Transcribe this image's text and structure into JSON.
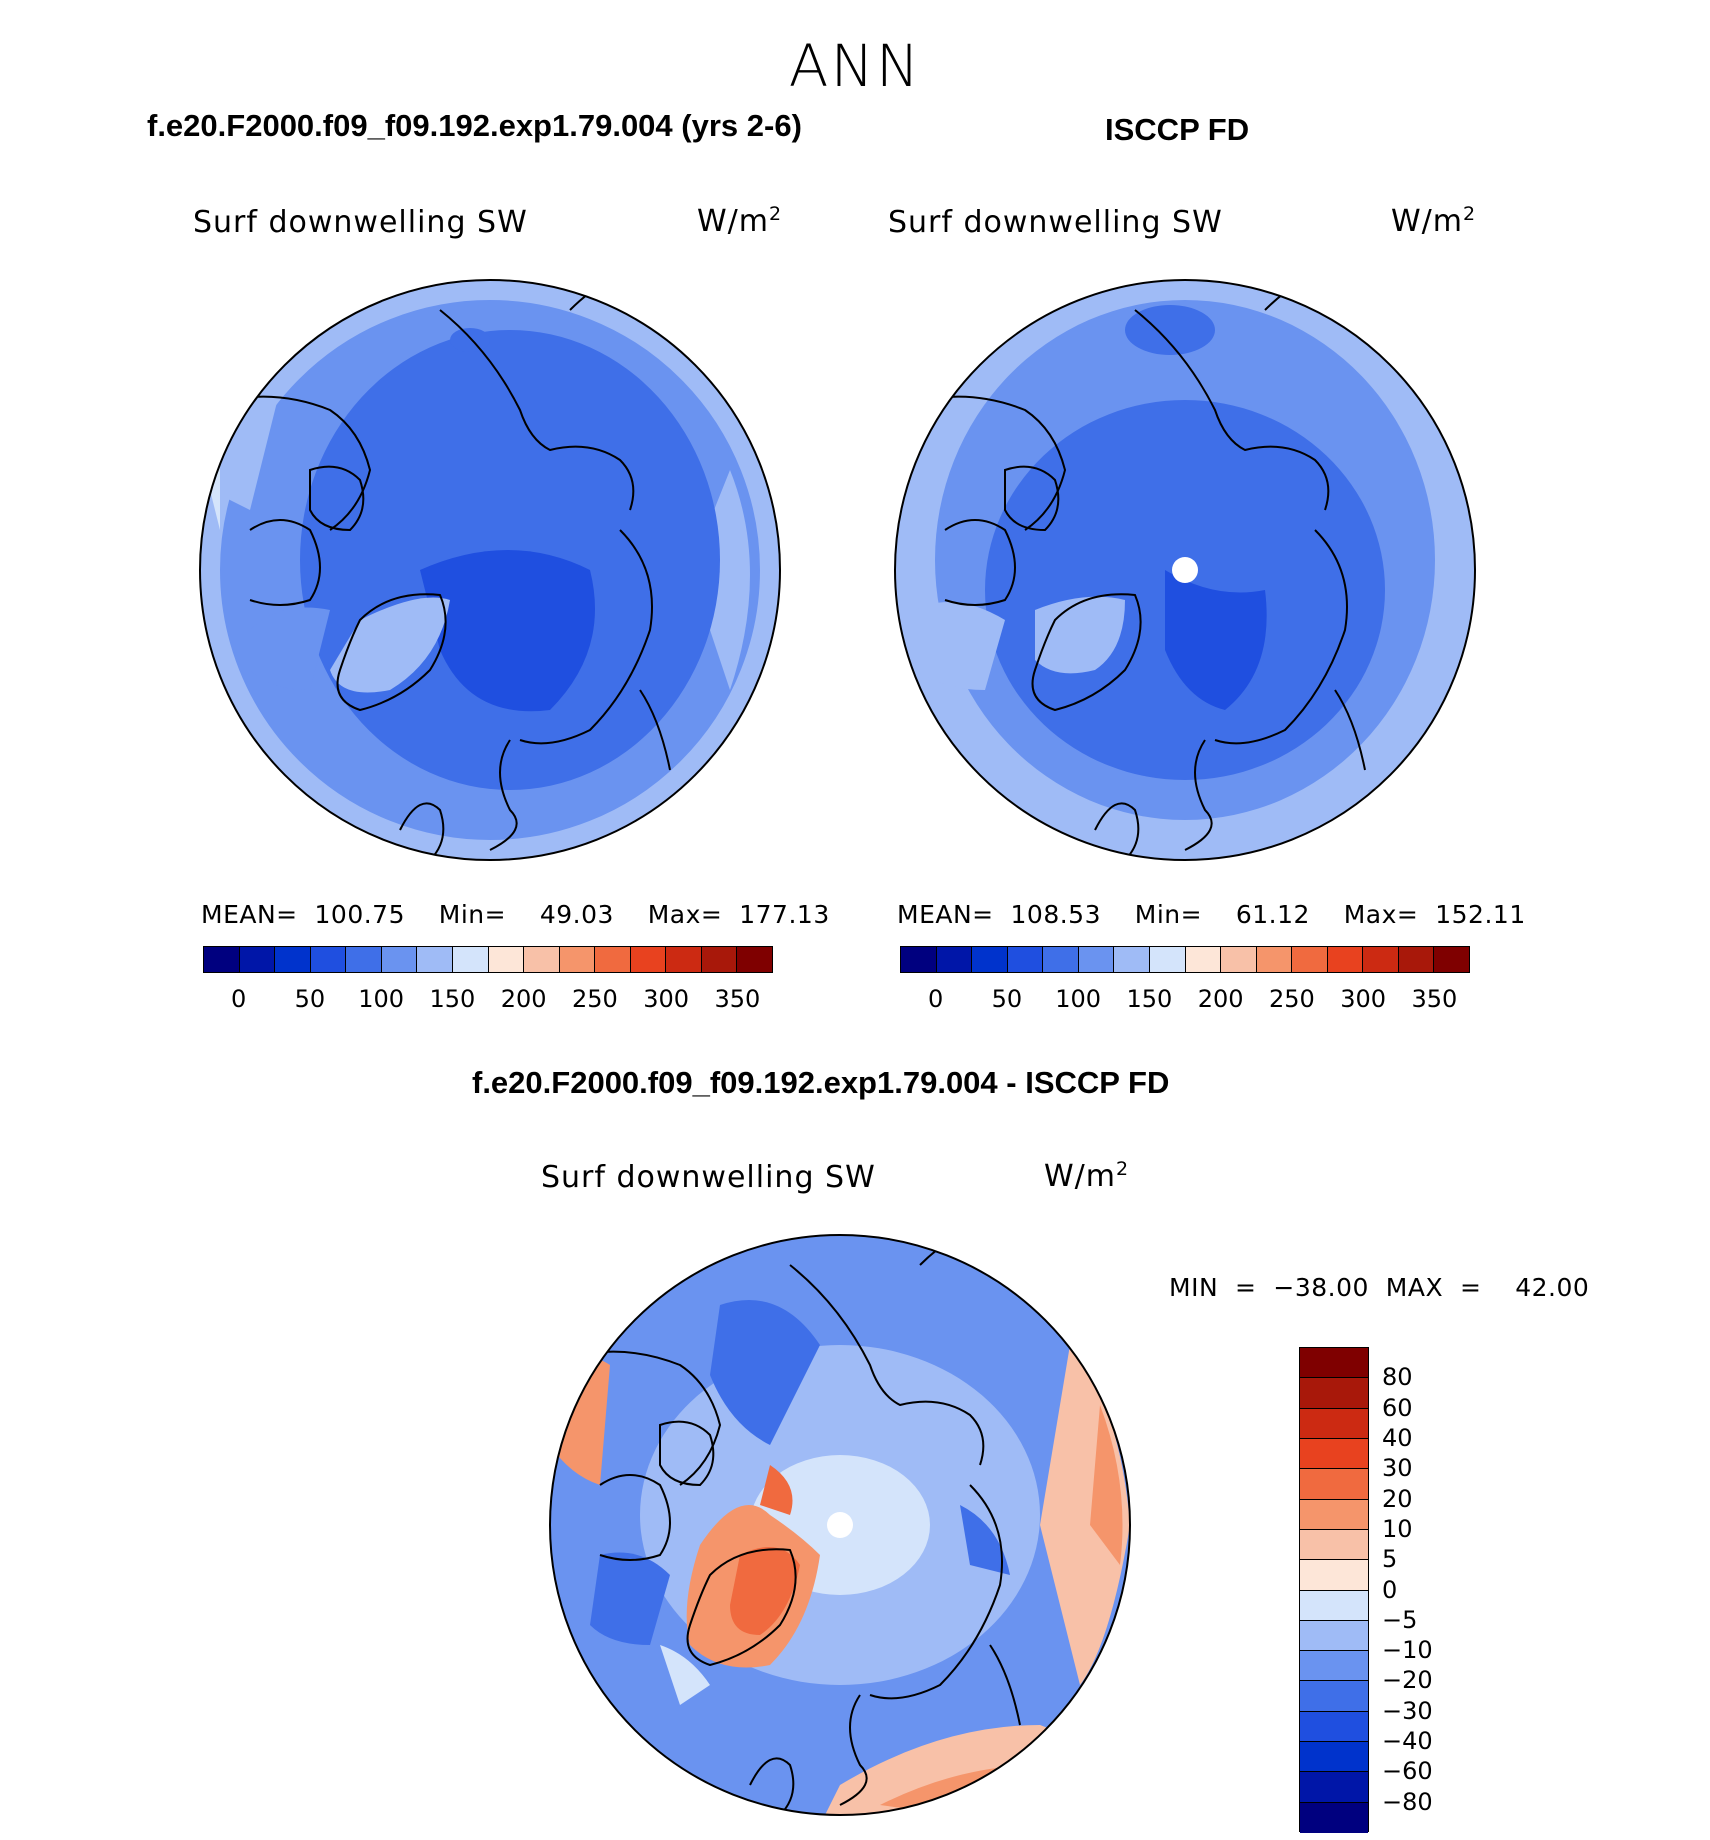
{
  "season": "ANN",
  "top_left": {
    "case_title": "f.e20.F2000.f09_f09.192.exp1.79.004 (yrs 2-6)",
    "panel_title": "Surf downwelling SW",
    "units_base": "W/m",
    "units_exp": "2",
    "stats": "MEAN=  100.75    Min=    49.03    Max=  177.13",
    "mean": 100.75,
    "min": 49.03,
    "max": 177.13
  },
  "top_right": {
    "case_title": "ISCCP FD",
    "panel_title": "Surf downwelling SW",
    "units_base": "W/m",
    "units_exp": "2",
    "stats": "MEAN=  108.53    Min=    61.12    Max=  152.11",
    "mean": 108.53,
    "min": 61.12,
    "max": 152.11
  },
  "bottom": {
    "case_title": "f.e20.F2000.f09_f09.192.exp1.79.004 - ISCCP FD",
    "panel_title": "Surf downwelling SW",
    "units_base": "W/m",
    "units_exp": "2",
    "minmax": "MIN  =  −38.00  MAX  =    42.00",
    "min": -38.0,
    "max": 42.0
  },
  "colorbar_abs": {
    "labels": [
      "0",
      "50",
      "100",
      "150",
      "200",
      "250",
      "300",
      "350"
    ],
    "colors": [
      "#00007f",
      "#0016a8",
      "#0033cc",
      "#1f4fe0",
      "#3f6fe8",
      "#6a93f0",
      "#9fbbf6",
      "#d4e4fb",
      "#fde6d8",
      "#f8c1a8",
      "#f5956b",
      "#f06a3f",
      "#e8421f",
      "#cc2a12",
      "#a8180a",
      "#7f0000"
    ]
  },
  "colorbar_diff": {
    "labels": [
      "80",
      "60",
      "40",
      "30",
      "20",
      "10",
      "5",
      "0",
      "−5",
      "−10",
      "−20",
      "−30",
      "−40",
      "−60",
      "−80"
    ],
    "colors": [
      "#7f0000",
      "#a8180a",
      "#cc2a12",
      "#e8421f",
      "#f06a3f",
      "#f5956b",
      "#f8c1a8",
      "#fde6d8",
      "#d4e4fb",
      "#9fbbf6",
      "#6a93f0",
      "#3f6fe8",
      "#1f4fe0",
      "#0033cc",
      "#0016a8",
      "#00007f"
    ]
  }
}
